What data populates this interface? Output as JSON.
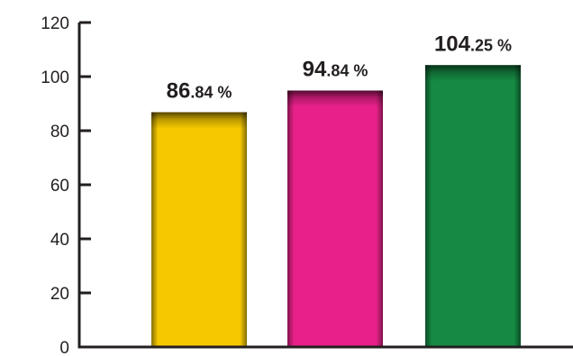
{
  "chart_data": {
    "type": "bar",
    "categories": [
      "",
      "",
      ""
    ],
    "values": [
      86.84,
      94.84,
      104.25
    ],
    "data_labels": [
      {
        "main": "86",
        "rest": ".84 %"
      },
      {
        "main": "94",
        "rest": ".84 %"
      },
      {
        "main": "104",
        "rest": ".25 %"
      }
    ],
    "colors": [
      "#f5c800",
      "#e8218a",
      "#168a44"
    ],
    "ylim": [
      0,
      120
    ],
    "yticks": [
      0,
      20,
      40,
      60,
      80,
      100,
      120
    ],
    "title": "",
    "xlabel": "",
    "ylabel": "",
    "grid": false,
    "legend": "none"
  }
}
